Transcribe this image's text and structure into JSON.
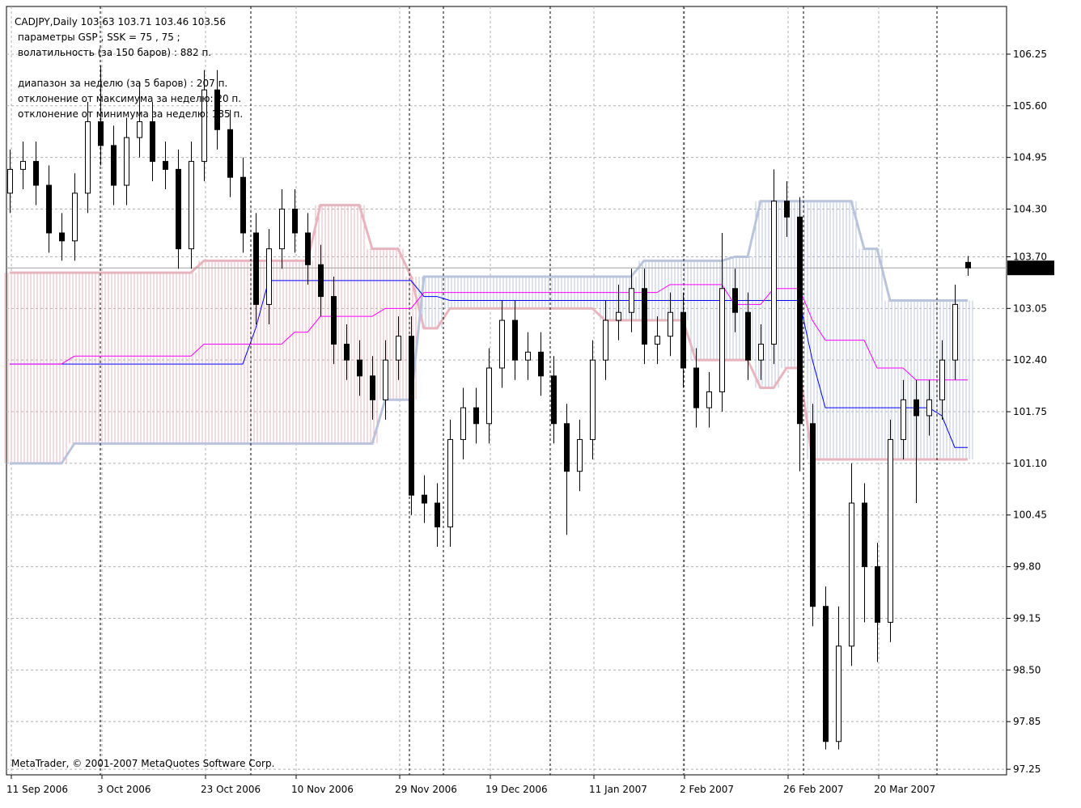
{
  "chart_data": {
    "type": "candlestick",
    "title": "CADJPY,Daily  103.63 103.71 103.46 103.56",
    "annotations": [
      "параметры GSP , SSK =  75 , 75 ;",
      "волатильность  (за 150 баров) :    882  п.",
      "",
      "диапазон за неделю  (за 5 баров) :   207  п.",
      "отклонение от максимума за неделю: 20  п.",
      "отклонение от минимума за неделю: 185  п."
    ],
    "copyright": "MetaTrader, © 2001-2007 MetaQuotes Software Corp.",
    "categories": [
      "11 Sep 2006",
      null,
      null,
      null,
      null,
      null,
      null,
      "3 Oct 2006",
      null,
      null,
      null,
      null,
      null,
      null,
      null,
      "23 Oct 2006",
      null,
      null,
      null,
      null,
      null,
      null,
      "10 Nov 2006",
      null,
      null,
      null,
      null,
      null,
      null,
      null,
      "29 Nov 2006",
      null,
      null,
      null,
      null,
      null,
      null,
      "19 Dec 2006",
      null,
      null,
      null,
      null,
      null,
      null,
      null,
      "11 Jan 2007",
      null,
      null,
      null,
      null,
      null,
      null,
      "2 Feb 2007",
      null,
      null,
      null,
      null,
      null,
      null,
      null,
      "26 Feb 2007",
      null,
      null,
      null,
      null,
      null,
      null,
      "20 Mar 2007",
      null,
      null,
      null,
      null,
      null,
      null,
      null
    ],
    "open": [
      104.5,
      104.8,
      104.9,
      104.6,
      104.0,
      103.9,
      104.5,
      105.4,
      105.1,
      104.6,
      105.2,
      105.4,
      104.9,
      104.8,
      103.8,
      104.9,
      105.8,
      105.3,
      104.7,
      104.0,
      103.1,
      103.8,
      104.3,
      104.0,
      103.6,
      103.2,
      102.6,
      102.4,
      102.2,
      101.9,
      102.4,
      102.7,
      100.7,
      100.6,
      100.3,
      101.4,
      101.8,
      101.6,
      102.3,
      102.9,
      102.4,
      102.5,
      102.2,
      101.6,
      101.0,
      101.4,
      102.4,
      102.9,
      103.0,
      103.3,
      102.6,
      102.7,
      103.0,
      102.3,
      101.8,
      102.0,
      103.3,
      103.0,
      102.4,
      102.6,
      104.4,
      104.2,
      101.6,
      99.3,
      97.6,
      98.8,
      100.6,
      99.8,
      99.1,
      101.4,
      101.9,
      101.7,
      101.9,
      102.4,
      103.63
    ],
    "high": [
      105.05,
      105.15,
      105.15,
      104.85,
      104.25,
      104.75,
      105.65,
      106.1,
      105.35,
      105.45,
      105.9,
      105.65,
      105.15,
      105.05,
      105.15,
      106.05,
      106.05,
      105.55,
      104.95,
      104.25,
      104.05,
      104.55,
      104.55,
      104.25,
      103.85,
      103.45,
      102.85,
      102.65,
      102.45,
      102.65,
      102.95,
      102.95,
      100.95,
      100.85,
      101.65,
      102.05,
      102.05,
      102.55,
      103.15,
      103.15,
      102.75,
      102.75,
      102.45,
      101.85,
      101.65,
      102.65,
      103.15,
      103.35,
      103.55,
      103.55,
      102.95,
      103.25,
      103.25,
      102.55,
      102.25,
      104.0,
      103.55,
      103.25,
      102.85,
      104.8,
      104.65,
      104.45,
      101.85,
      99.55,
      99.3,
      101.1,
      100.85,
      100.1,
      101.65,
      102.15,
      102.15,
      102.15,
      102.65,
      103.35,
      103.71
    ],
    "low": [
      104.25,
      104.55,
      104.35,
      103.75,
      103.65,
      103.65,
      104.25,
      104.85,
      104.35,
      104.35,
      104.95,
      104.65,
      104.55,
      103.55,
      103.55,
      104.65,
      105.05,
      104.45,
      103.75,
      102.85,
      102.85,
      103.55,
      103.75,
      103.35,
      102.95,
      102.35,
      102.15,
      101.95,
      101.65,
      101.65,
      102.15,
      100.45,
      100.35,
      100.05,
      100.05,
      101.15,
      101.35,
      101.35,
      102.05,
      102.15,
      102.15,
      101.95,
      101.35,
      100.2,
      100.75,
      101.15,
      102.15,
      102.65,
      102.75,
      102.35,
      102.35,
      102.45,
      102.05,
      101.55,
      101.55,
      101.75,
      102.75,
      102.15,
      102.15,
      102.35,
      103.95,
      101.0,
      99.05,
      97.5,
      97.5,
      98.55,
      99.1,
      98.6,
      98.85,
      101.15,
      100.6,
      101.45,
      101.65,
      102.15,
      103.46
    ],
    "close": [
      104.8,
      104.9,
      104.6,
      104.0,
      103.9,
      104.5,
      105.4,
      105.1,
      104.6,
      105.2,
      105.4,
      104.9,
      104.8,
      103.8,
      104.9,
      105.8,
      105.3,
      104.7,
      104.0,
      103.1,
      103.8,
      104.3,
      104.0,
      103.6,
      103.2,
      102.6,
      102.4,
      102.2,
      101.9,
      102.4,
      102.7,
      100.7,
      100.6,
      100.3,
      101.4,
      101.8,
      101.6,
      102.3,
      102.9,
      102.4,
      102.5,
      102.2,
      101.6,
      101.0,
      101.4,
      102.4,
      102.9,
      103.0,
      103.3,
      102.6,
      102.7,
      103.0,
      102.3,
      101.8,
      102.0,
      103.3,
      103.0,
      102.4,
      102.6,
      104.4,
      104.2,
      101.6,
      99.3,
      97.6,
      98.8,
      100.6,
      99.8,
      99.1,
      101.4,
      101.9,
      101.7,
      101.9,
      102.4,
      103.1,
      103.56
    ],
    "up_color": "#ffffff",
    "down_color": "#000000",
    "candle_outline": "#000000",
    "cloud": {
      "span_a": {
        "color": "#e8b4bd",
        "values": [
          103.5,
          103.5,
          103.5,
          103.5,
          103.5,
          103.5,
          103.5,
          103.5,
          103.5,
          103.5,
          103.5,
          103.5,
          103.5,
          103.5,
          103.5,
          103.65,
          103.65,
          103.65,
          103.65,
          103.65,
          103.65,
          103.65,
          103.65,
          103.65,
          104.35,
          104.35,
          104.35,
          104.35,
          103.8,
          103.8,
          103.8,
          103.45,
          102.8,
          102.8,
          103.05,
          103.05,
          103.05,
          103.05,
          103.05,
          103.05,
          103.05,
          103.05,
          103.05,
          103.05,
          103.05,
          103.05,
          102.9,
          102.9,
          102.9,
          102.9,
          102.9,
          102.9,
          102.9,
          102.4,
          102.4,
          102.4,
          102.4,
          102.4,
          102.05,
          102.05,
          102.3,
          102.3,
          101.15,
          101.15,
          101.15,
          101.15,
          101.15,
          101.15,
          101.15,
          101.15,
          101.15,
          101.15,
          101.15,
          101.15,
          101.15
        ]
      },
      "span_b": {
        "color": "#b9c4dc",
        "values": [
          101.1,
          101.1,
          101.1,
          101.1,
          101.1,
          101.35,
          101.35,
          101.35,
          101.35,
          101.35,
          101.35,
          101.35,
          101.35,
          101.35,
          101.35,
          101.35,
          101.35,
          101.35,
          101.35,
          101.35,
          101.35,
          101.35,
          101.35,
          101.35,
          101.35,
          101.35,
          101.35,
          101.35,
          101.35,
          101.9,
          101.9,
          101.9,
          103.45,
          103.45,
          103.45,
          103.45,
          103.45,
          103.45,
          103.45,
          103.45,
          103.45,
          103.45,
          103.45,
          103.45,
          103.45,
          103.45,
          103.45,
          103.45,
          103.45,
          103.65,
          103.65,
          103.65,
          103.65,
          103.65,
          103.65,
          103.65,
          103.7,
          103.7,
          104.4,
          104.4,
          104.4,
          104.4,
          104.4,
          104.4,
          104.4,
          104.4,
          103.8,
          103.8,
          103.15,
          103.15,
          103.15,
          103.15,
          103.15,
          103.15,
          103.15
        ]
      }
    },
    "indicators": [
      {
        "color": "#0000ff",
        "values": [
          102.35,
          102.35,
          102.35,
          102.35,
          102.35,
          102.35,
          102.35,
          102.35,
          102.35,
          102.35,
          102.35,
          102.35,
          102.35,
          102.35,
          102.35,
          102.35,
          102.35,
          102.35,
          102.35,
          102.8,
          103.4,
          103.4,
          103.4,
          103.4,
          103.4,
          103.4,
          103.4,
          103.4,
          103.4,
          103.4,
          103.4,
          103.4,
          103.2,
          103.2,
          103.15,
          103.15,
          103.15,
          103.15,
          103.15,
          103.15,
          103.15,
          103.15,
          103.15,
          103.15,
          103.15,
          103.15,
          103.15,
          103.15,
          103.15,
          103.15,
          103.15,
          103.15,
          103.15,
          103.15,
          103.15,
          103.15,
          103.15,
          103.15,
          103.15,
          103.15,
          103.15,
          103.15,
          102.4,
          101.8,
          101.8,
          101.8,
          101.8,
          101.8,
          101.8,
          101.8,
          101.8,
          101.8,
          101.7,
          101.3,
          101.3
        ]
      },
      {
        "color": "#ff00ff",
        "values": [
          102.35,
          102.35,
          102.35,
          102.35,
          102.35,
          102.45,
          102.45,
          102.45,
          102.45,
          102.45,
          102.45,
          102.45,
          102.45,
          102.45,
          102.45,
          102.6,
          102.6,
          102.6,
          102.6,
          102.6,
          102.6,
          102.6,
          102.75,
          102.75,
          102.95,
          102.95,
          102.95,
          102.95,
          102.95,
          103.05,
          103.05,
          103.05,
          103.25,
          103.25,
          103.25,
          103.25,
          103.25,
          103.25,
          103.25,
          103.25,
          103.25,
          103.25,
          103.25,
          103.25,
          103.25,
          103.25,
          103.25,
          103.25,
          103.25,
          103.25,
          103.25,
          103.35,
          103.35,
          103.35,
          103.35,
          103.35,
          103.1,
          103.1,
          103.1,
          103.3,
          103.3,
          103.3,
          102.9,
          102.65,
          102.65,
          102.65,
          102.65,
          102.3,
          102.3,
          102.3,
          102.15,
          102.15,
          102.15,
          102.15,
          102.15
        ]
      }
    ],
    "bid": 103.56,
    "ylim": [
      97.18,
      106.85
    ],
    "yticks": [
      97.25,
      97.85,
      {
        "value": 98.5,
        "label": "98.50"
      },
      99.15,
      {
        "value": 99.8,
        "label": "99.80"
      },
      100.45,
      {
        "value": 101.1,
        "label": "101.10"
      },
      101.75,
      {
        "value": 102.4,
        "label": "102.40"
      },
      103.05,
      {
        "value": 103.7,
        "label": "103.70"
      },
      {
        "value": 104.3,
        "label": "104.30"
      },
      104.95,
      {
        "value": 105.6,
        "label": "105.60"
      },
      106.25
    ],
    "grid": true
  }
}
